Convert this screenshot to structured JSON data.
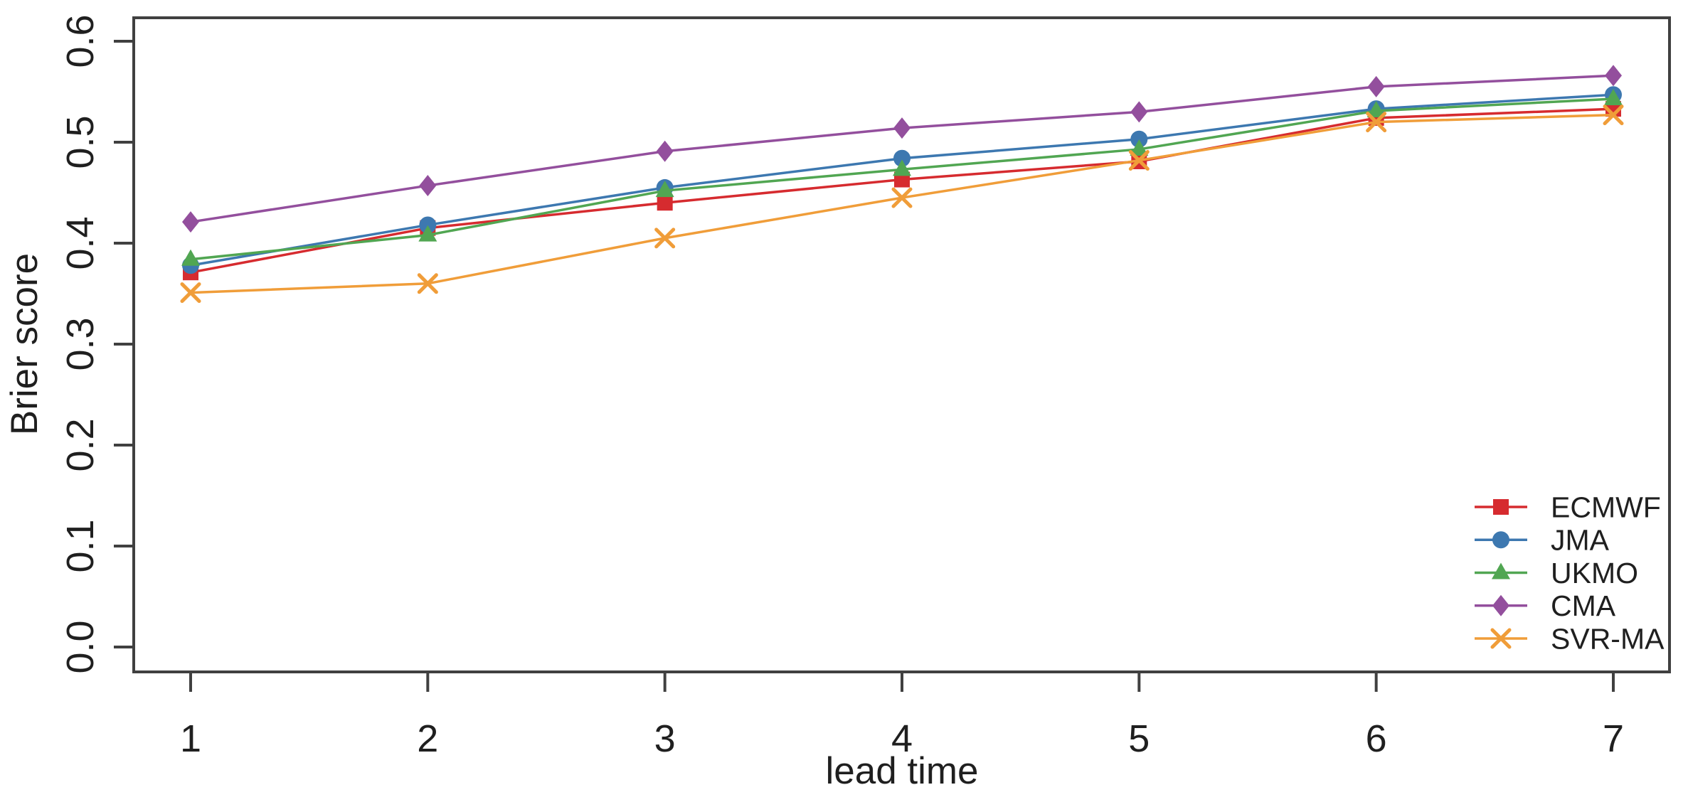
{
  "chart_data": {
    "type": "line",
    "title": "",
    "xlabel": "lead time",
    "ylabel": "Brier score",
    "x": [
      1,
      2,
      3,
      4,
      5,
      6,
      7
    ],
    "xtick_labels": [
      "1",
      "2",
      "3",
      "4",
      "5",
      "6",
      "7"
    ],
    "ytick_labels": [
      "0.0",
      "0.1",
      "0.2",
      "0.3",
      "0.4",
      "0.5",
      "0.6"
    ],
    "xlim": [
      1,
      7
    ],
    "ylim": [
      0.0,
      0.6
    ],
    "grid": false,
    "legend_position": "bottom-right",
    "axis_color": "#404040",
    "series": [
      {
        "name": "ECMWF",
        "color": "#d62b2f",
        "marker": "square",
        "values": [
          0.371,
          0.415,
          0.44,
          0.463,
          0.481,
          0.524,
          0.533
        ]
      },
      {
        "name": "JMA",
        "color": "#3d78b0",
        "marker": "circle",
        "values": [
          0.378,
          0.418,
          0.455,
          0.484,
          0.503,
          0.533,
          0.547
        ]
      },
      {
        "name": "UKMO",
        "color": "#51a652",
        "marker": "triangle",
        "values": [
          0.384,
          0.408,
          0.452,
          0.473,
          0.493,
          0.531,
          0.543
        ]
      },
      {
        "name": "CMA",
        "color": "#934f9d",
        "marker": "diamond",
        "values": [
          0.421,
          0.457,
          0.491,
          0.514,
          0.53,
          0.555,
          0.566
        ]
      },
      {
        "name": "SVR-MA",
        "color": "#f09d39",
        "marker": "x",
        "values": [
          0.351,
          0.36,
          0.405,
          0.445,
          0.482,
          0.52,
          0.527
        ]
      }
    ]
  }
}
